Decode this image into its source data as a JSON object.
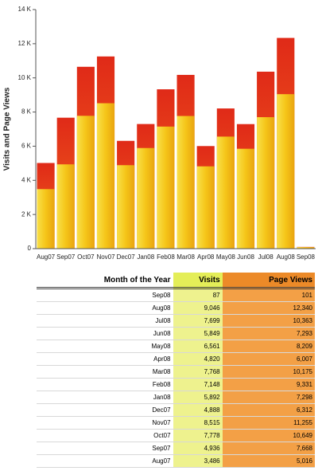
{
  "chart_data": {
    "type": "bar",
    "y_label": "Visits and Page Views",
    "categories": [
      "Aug07",
      "Sep07",
      "Oct07",
      "Nov07",
      "Dec07",
      "Jan08",
      "Feb08",
      "Mar08",
      "Apr08",
      "May08",
      "Jun08",
      "Jul08",
      "Aug08",
      "Sep08"
    ],
    "series": [
      {
        "name": "Visits",
        "color": "#f5c518",
        "values": [
          3486,
          4936,
          7778,
          8515,
          4888,
          5892,
          7148,
          7768,
          4820,
          6561,
          5849,
          7699,
          9046,
          87
        ]
      },
      {
        "name": "Page Views",
        "color": "#e8401c",
        "values": [
          5016,
          7668,
          10649,
          11255,
          6312,
          7298,
          9331,
          10175,
          6007,
          8209,
          7293,
          10363,
          12340,
          101
        ]
      }
    ],
    "ylim": [
      0,
      14000
    ],
    "yticks": [
      0,
      {
        "value": 2000,
        "label": "2 K"
      },
      {
        "value": 4000,
        "label": "4 K"
      },
      {
        "value": 6000,
        "label": "6 K"
      },
      {
        "value": 8000,
        "label": "8 K"
      },
      {
        "value": 10000,
        "label": "10 K"
      },
      {
        "value": 12000,
        "label": "12 K"
      },
      {
        "value": 14000,
        "label": "14 K"
      }
    ],
    "grid": false
  },
  "table": {
    "header": [
      "Month of the Year",
      "Visits",
      "Page Views"
    ],
    "rows": [
      [
        "Sep08",
        "87",
        "101"
      ],
      [
        "Aug08",
        "9,046",
        "12,340"
      ],
      [
        "Jul08",
        "7,699",
        "10,363"
      ],
      [
        "Jun08",
        "5,849",
        "7,293"
      ],
      [
        "May08",
        "6,561",
        "8,209"
      ],
      [
        "Apr08",
        "4,820",
        "6,007"
      ],
      [
        "Mar08",
        "7,768",
        "10,175"
      ],
      [
        "Feb08",
        "7,148",
        "9,331"
      ],
      [
        "Jan08",
        "5,892",
        "7,298"
      ],
      [
        "Dec07",
        "4,888",
        "6,312"
      ],
      [
        "Nov07",
        "8,515",
        "11,255"
      ],
      [
        "Oct07",
        "7,778",
        "10,649"
      ],
      [
        "Sep07",
        "4,936",
        "7,668"
      ],
      [
        "Aug07",
        "3,486",
        "5,016"
      ]
    ]
  }
}
